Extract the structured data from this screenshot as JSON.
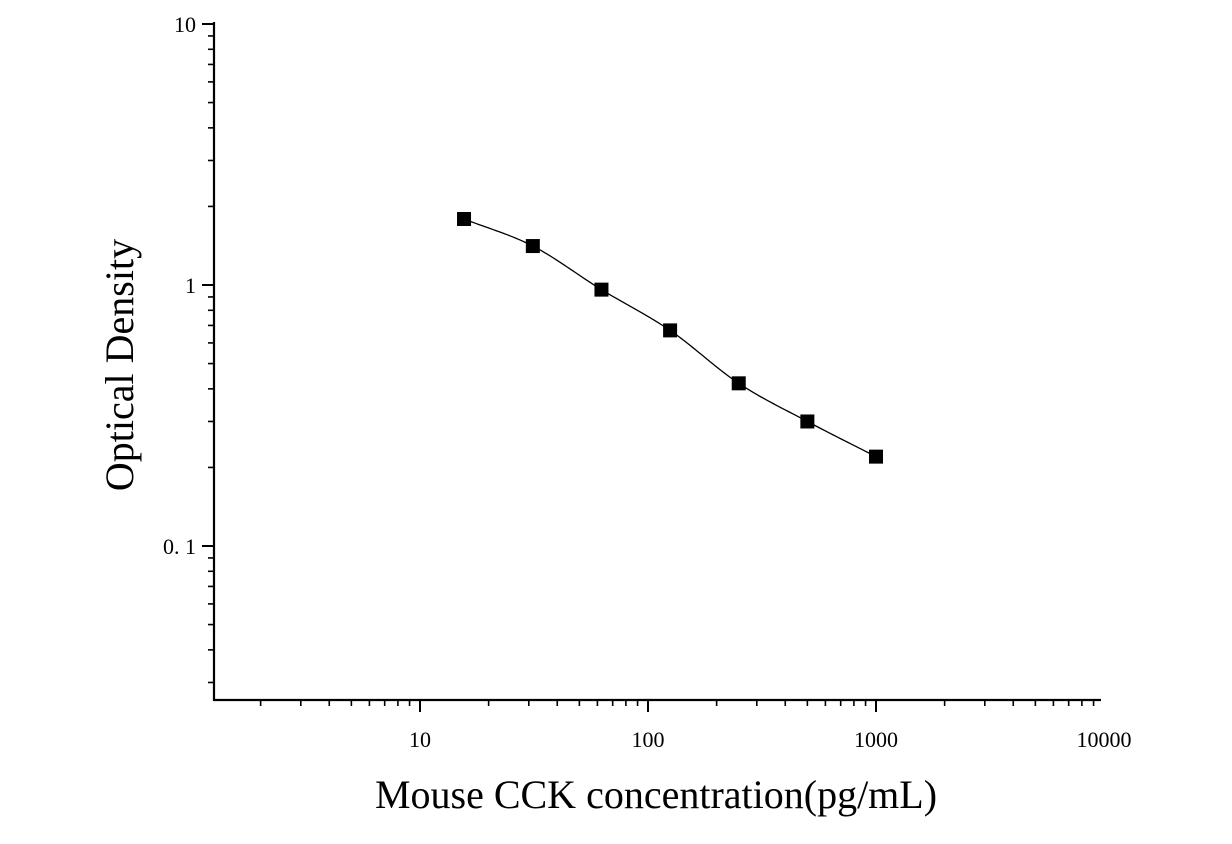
{
  "chart_data": {
    "type": "scatter",
    "title": "",
    "xlabel": "Mouse CCK concentration(pg/mL)",
    "ylabel": "Optical Density",
    "x_scale": "log",
    "y_scale": "log",
    "xlim": [
      1.25,
      10000
    ],
    "ylim": [
      0.025,
      10
    ],
    "x_ticks": [
      10,
      100,
      1000,
      10000
    ],
    "x_tick_labels": [
      "10",
      "100",
      "1000",
      "10000"
    ],
    "y_ticks": [
      0.1,
      1,
      10
    ],
    "y_tick_labels": [
      "0. 1",
      "1",
      "10"
    ],
    "grid": false,
    "legend": "none",
    "series": [
      {
        "marker": "square",
        "fit_line": true,
        "x": [
          15.6,
          31.25,
          62.5,
          125,
          250,
          500,
          1000
        ],
        "y": [
          1.79,
          1.41,
          0.96,
          0.67,
          0.42,
          0.3,
          0.22
        ]
      }
    ],
    "colors": {
      "axis": "#000000",
      "marker": "#000000",
      "line": "#000000",
      "background": "#ffffff"
    }
  }
}
